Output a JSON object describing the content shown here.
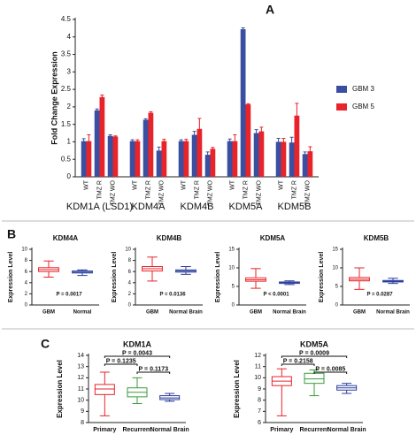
{
  "chart_data": [
    {
      "type": "bar",
      "panel": "A",
      "ylabel": "Fold Change Expression",
      "ylim": [
        0,
        4.5
      ],
      "yticks": [
        0,
        0.5,
        1,
        1.5,
        2,
        2.5,
        3,
        3.5,
        4,
        4.5
      ],
      "categories": [
        "WT",
        "TMZ R",
        "TMZ WO",
        "WT",
        "TMZ R",
        "TMZ WO",
        "WT",
        "TMZ R",
        "TMZ WO",
        "WT",
        "TMZ R",
        "TMZ WO",
        "WT",
        "TMZ R",
        "TMZ WO"
      ],
      "groups": [
        "KDM1A (LSD1)",
        "KDM4A",
        "KDM4B",
        "KDM5A",
        "KDM5B"
      ],
      "legend": "right",
      "series": [
        {
          "name": "GBM 3",
          "color": "#3a4fa0",
          "values": [
            1.02,
            1.9,
            1.17,
            1.02,
            1.63,
            0.75,
            1.02,
            1.2,
            0.63,
            1.02,
            4.22,
            1.25,
            1.0,
            0.98,
            0.65
          ],
          "errors": [
            0.07,
            0.04,
            0.03,
            0.04,
            0.03,
            0.1,
            0.04,
            0.1,
            0.08,
            0.06,
            0.04,
            0.1,
            0.1,
            0.15,
            0.06
          ]
        },
        {
          "name": "GBM 5",
          "color": "#e8232a",
          "values": [
            1.02,
            2.28,
            1.15,
            1.02,
            1.83,
            1.02,
            1.02,
            1.37,
            0.8,
            1.02,
            2.07,
            1.3,
            1.0,
            1.75,
            0.73
          ],
          "errors": [
            0.18,
            0.06,
            0.02,
            0.04,
            0.03,
            0.05,
            0.05,
            0.3,
            0.04,
            0.18,
            0.02,
            0.12,
            0.1,
            0.35,
            0.13
          ]
        }
      ]
    },
    {
      "type": "box",
      "panel": "B",
      "title": "KDM4A",
      "ylabel": "Expression Level",
      "ylim": [
        0,
        10
      ],
      "yticks": [
        0,
        2,
        4,
        6,
        8,
        10
      ],
      "categories": [
        "GBM",
        "Normal"
      ],
      "annotation": "P = 0.0017",
      "boxes": [
        {
          "color": "#e8232a",
          "min": 5.0,
          "q1": 6.0,
          "median": 6.35,
          "q3": 6.7,
          "max": 7.9
        },
        {
          "color": "#2b3f9c",
          "min": 5.3,
          "q1": 5.75,
          "median": 5.9,
          "q3": 6.1,
          "max": 6.3
        }
      ]
    },
    {
      "type": "box",
      "title": "KDM4B",
      "ylabel": "Expression Level",
      "ylim": [
        0,
        10
      ],
      "yticks": [
        0,
        2,
        4,
        6,
        8,
        10
      ],
      "categories": [
        "GBM",
        "Normal Brain"
      ],
      "annotation": "P = 0.0136",
      "boxes": [
        {
          "color": "#e8232a",
          "min": 4.3,
          "q1": 6.1,
          "median": 6.5,
          "q3": 6.9,
          "max": 8.6
        },
        {
          "color": "#2b3f9c",
          "min": 5.5,
          "q1": 5.9,
          "median": 6.1,
          "q3": 6.3,
          "max": 6.9
        }
      ]
    },
    {
      "type": "box",
      "title": "KDM5A",
      "ylabel": "Expression Level",
      "ylim": [
        0,
        15
      ],
      "yticks": [
        0,
        5,
        10,
        15
      ],
      "categories": [
        "GBM",
        "Normal Brain"
      ],
      "annotation": "P < 0.0001",
      "boxes": [
        {
          "color": "#e8232a",
          "min": 4.5,
          "q1": 6.4,
          "median": 6.8,
          "q3": 7.3,
          "max": 9.8
        },
        {
          "color": "#2b3f9c",
          "min": 5.5,
          "q1": 5.8,
          "median": 6.0,
          "q3": 6.2,
          "max": 6.5
        }
      ]
    },
    {
      "type": "box",
      "title": "KDM5B",
      "ylabel": "Expression Level",
      "ylim": [
        0,
        15
      ],
      "yticks": [
        0,
        5,
        10,
        15
      ],
      "categories": [
        "GBM",
        "Normal Brain"
      ],
      "annotation": "P = 0.0287",
      "boxes": [
        {
          "color": "#e8232a",
          "min": 4.2,
          "q1": 6.5,
          "median": 6.9,
          "q3": 7.4,
          "max": 10.0
        },
        {
          "color": "#2b3f9c",
          "min": 5.8,
          "q1": 6.2,
          "median": 6.4,
          "q3": 6.6,
          "max": 7.2
        }
      ]
    },
    {
      "type": "box",
      "panel": "C",
      "title": "KDM1A",
      "ylabel": "Expression Level",
      "ylim": [
        8,
        14
      ],
      "yticks": [
        8,
        9,
        10,
        11,
        12,
        13,
        14
      ],
      "categories": [
        "Primary",
        "Recurrent",
        "Normal Brain"
      ],
      "comparisons": [
        {
          "between": [
            "Primary",
            "Normal Brain"
          ],
          "label": "P = 0.0043"
        },
        {
          "between": [
            "Primary",
            "Recurrent"
          ],
          "label": "P = 0.1235"
        },
        {
          "between": [
            "Recurrent",
            "Normal Brain"
          ],
          "label": "P = 0.1173"
        }
      ],
      "boxes": [
        {
          "color": "#e8232a",
          "min": 8.6,
          "q1": 10.5,
          "median": 11.0,
          "q3": 11.4,
          "max": 12.5
        },
        {
          "color": "#3a9a3a",
          "min": 9.7,
          "q1": 10.3,
          "median": 10.7,
          "q3": 11.1,
          "max": 12.0
        },
        {
          "color": "#2b3f9c",
          "min": 9.9,
          "q1": 10.05,
          "median": 10.2,
          "q3": 10.4,
          "max": 10.6
        }
      ]
    },
    {
      "type": "box",
      "title": "KDM5A",
      "ylabel": "Expression Level",
      "ylim": [
        6,
        12
      ],
      "yticks": [
        6,
        7,
        8,
        9,
        10,
        11,
        12
      ],
      "categories": [
        "Primary",
        "Recurrent",
        "Normal Brain"
      ],
      "comparisons": [
        {
          "between": [
            "Primary",
            "Normal Brain"
          ],
          "label": "P = 0.0009"
        },
        {
          "between": [
            "Primary",
            "Recurrent"
          ],
          "label": "P = 0.2158"
        },
        {
          "between": [
            "Recurrent",
            "Normal Brain"
          ],
          "label": "P = 0.0085"
        }
      ],
      "boxes": [
        {
          "color": "#e8232a",
          "min": 6.6,
          "q1": 9.3,
          "median": 9.7,
          "q3": 10.1,
          "max": 10.8
        },
        {
          "color": "#3a9a3a",
          "min": 8.4,
          "q1": 9.5,
          "median": 9.9,
          "q3": 10.4,
          "max": 10.7
        },
        {
          "color": "#2b3f9c",
          "min": 8.6,
          "q1": 8.9,
          "median": 9.1,
          "q3": 9.3,
          "max": 9.5
        }
      ]
    }
  ]
}
